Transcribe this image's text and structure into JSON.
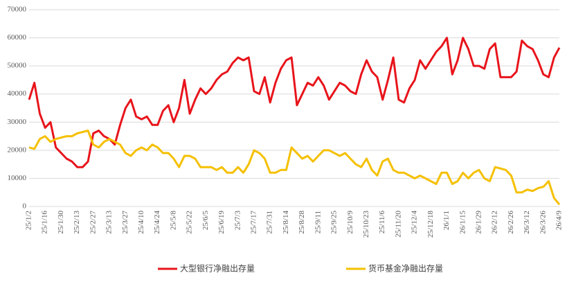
{
  "chart_data": {
    "type": "line",
    "categories": [
      "25/1/2",
      null,
      null,
      "25/1/16",
      null,
      null,
      "25/1/30",
      null,
      null,
      "25/2/13",
      null,
      null,
      "25/2/27",
      null,
      null,
      "25/3/13",
      null,
      null,
      "25/3/27",
      null,
      null,
      "25/4/10",
      null,
      null,
      "25/4/24",
      null,
      null,
      "25/5/8",
      null,
      null,
      "25/5/22",
      null,
      null,
      "25/6/5",
      null,
      null,
      "25/6/19",
      null,
      null,
      "25/7/3",
      null,
      null,
      "25/7/17",
      null,
      null,
      "25/7/31",
      null,
      null,
      "25/8/14",
      null,
      null,
      "25/8/28",
      null,
      null,
      "25/9/11",
      null,
      null,
      "25/9/25",
      null,
      null,
      "25/10/9",
      null,
      null,
      "25/10/23",
      null,
      null,
      "25/11/6",
      null,
      null,
      "25/11/20",
      null,
      null,
      "25/12/4",
      null,
      null,
      "25/12/18",
      null,
      null,
      "26/1/1",
      null,
      null,
      "26/1/15",
      null,
      null,
      "26/1/29",
      null,
      null,
      "26/2/12",
      null,
      null,
      "26/2/26",
      null,
      null,
      "26/3/12",
      null,
      null,
      "26/3/26",
      null,
      null,
      "26/4/9"
    ],
    "series": [
      {
        "name": "大型银行净融出存量",
        "color": "#e8141b",
        "values": [
          38000,
          44000,
          33000,
          28000,
          30000,
          21000,
          19000,
          17000,
          16000,
          14000,
          14000,
          16000,
          26000,
          27000,
          25000,
          24000,
          22000,
          29000,
          35000,
          38000,
          32000,
          31000,
          32000,
          29000,
          29000,
          34000,
          36000,
          30000,
          35000,
          45000,
          33000,
          38000,
          42000,
          40000,
          42000,
          45000,
          47000,
          48000,
          51000,
          53000,
          52000,
          53000,
          41000,
          40000,
          46000,
          37000,
          44000,
          49000,
          52000,
          53000,
          36000,
          40000,
          44000,
          43000,
          46000,
          43000,
          38000,
          41000,
          44000,
          43000,
          41000,
          40000,
          47000,
          52000,
          48000,
          46000,
          38000,
          45000,
          53000,
          38000,
          37000,
          42000,
          45000,
          52000,
          49000,
          52000,
          55000,
          57000,
          60000,
          47000,
          52000,
          60000,
          56000,
          50000,
          50000,
          49000,
          56000,
          58000,
          46000,
          46000,
          46000,
          48000,
          59000,
          57000,
          56000,
          52000,
          47000,
          46000,
          53000,
          56500
        ]
      },
      {
        "name": "货币基金净融出存量",
        "color": "#f5c000",
        "values": [
          21000,
          20500,
          24000,
          25000,
          23000,
          24000,
          24500,
          25000,
          25000,
          26000,
          26500,
          27000,
          22000,
          21000,
          23000,
          24000,
          23000,
          22000,
          19000,
          18000,
          20000,
          21000,
          20000,
          22000,
          21000,
          19000,
          19000,
          17000,
          14000,
          18000,
          18000,
          17000,
          14000,
          14000,
          14000,
          13000,
          14000,
          12000,
          12000,
          14000,
          12000,
          15000,
          20000,
          19000,
          17000,
          12000,
          12000,
          13000,
          13000,
          21000,
          19000,
          17000,
          18000,
          16000,
          18000,
          20000,
          20000,
          19000,
          18000,
          19000,
          17000,
          15000,
          14000,
          17000,
          13000,
          11000,
          16000,
          17000,
          13000,
          12000,
          12000,
          11000,
          10000,
          11000,
          10000,
          9000,
          8000,
          12000,
          12000,
          8000,
          9000,
          12000,
          10000,
          12000,
          13000,
          10000,
          9000,
          14000,
          13500,
          13000,
          11000,
          5000,
          5000,
          6000,
          5500,
          6500,
          7000,
          9000,
          3000,
          700
        ]
      }
    ],
    "ylim": [
      0,
      70000
    ],
    "yticks": [
      0,
      10000,
      20000,
      30000,
      40000,
      50000,
      60000,
      70000
    ],
    "grid": true
  }
}
